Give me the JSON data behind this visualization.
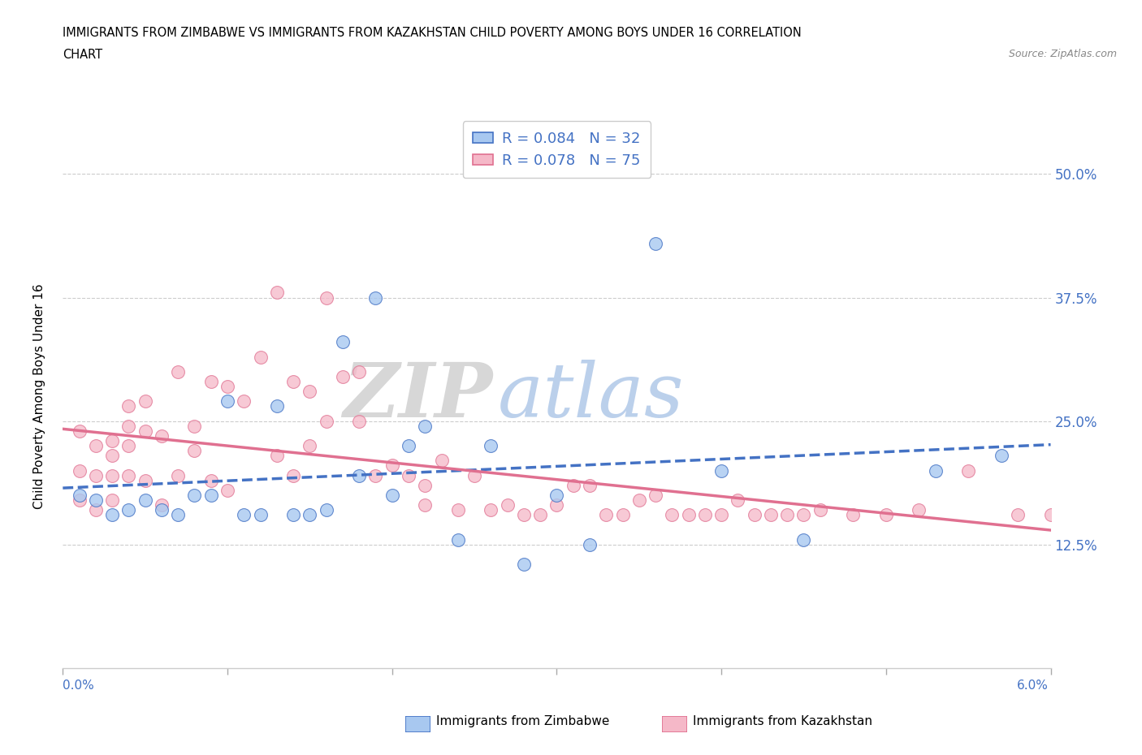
{
  "title_line1": "IMMIGRANTS FROM ZIMBABWE VS IMMIGRANTS FROM KAZAKHSTAN CHILD POVERTY AMONG BOYS UNDER 16 CORRELATION",
  "title_line2": "CHART",
  "source": "Source: ZipAtlas.com",
  "ylabel": "Child Poverty Among Boys Under 16",
  "ylabel_right_ticks": [
    "50.0%",
    "37.5%",
    "25.0%",
    "12.5%"
  ],
  "ylabel_right_vals": [
    0.5,
    0.375,
    0.25,
    0.125
  ],
  "color_zimbabwe": "#a8c8f0",
  "color_kazakhstan": "#f5b8c8",
  "color_text_blue": "#4472c4",
  "color_line_zimbabwe": "#4472c4",
  "color_line_kazakhstan": "#e07090",
  "watermark_top": "ZIP",
  "watermark_bot": "atlas",
  "xlim": [
    0.0,
    0.06
  ],
  "ylim": [
    0.0,
    0.55
  ],
  "zimbabwe_x": [
    0.001,
    0.002,
    0.003,
    0.004,
    0.005,
    0.006,
    0.007,
    0.008,
    0.009,
    0.01,
    0.011,
    0.012,
    0.013,
    0.014,
    0.015,
    0.016,
    0.017,
    0.018,
    0.019,
    0.02,
    0.021,
    0.022,
    0.024,
    0.026,
    0.028,
    0.03,
    0.032,
    0.036,
    0.04,
    0.045,
    0.053,
    0.057
  ],
  "zimbabwe_y": [
    0.175,
    0.17,
    0.155,
    0.16,
    0.17,
    0.16,
    0.155,
    0.175,
    0.175,
    0.27,
    0.155,
    0.155,
    0.265,
    0.155,
    0.155,
    0.16,
    0.33,
    0.195,
    0.375,
    0.175,
    0.225,
    0.245,
    0.13,
    0.225,
    0.105,
    0.175,
    0.125,
    0.43,
    0.2,
    0.13,
    0.2,
    0.215
  ],
  "kazakhstan_x": [
    0.001,
    0.001,
    0.001,
    0.002,
    0.002,
    0.002,
    0.003,
    0.003,
    0.003,
    0.003,
    0.004,
    0.004,
    0.004,
    0.004,
    0.005,
    0.005,
    0.005,
    0.006,
    0.006,
    0.007,
    0.007,
    0.008,
    0.008,
    0.009,
    0.009,
    0.01,
    0.01,
    0.011,
    0.012,
    0.013,
    0.013,
    0.014,
    0.014,
    0.015,
    0.015,
    0.016,
    0.016,
    0.017,
    0.018,
    0.018,
    0.019,
    0.02,
    0.021,
    0.022,
    0.022,
    0.023,
    0.024,
    0.025,
    0.026,
    0.027,
    0.028,
    0.029,
    0.03,
    0.031,
    0.032,
    0.033,
    0.034,
    0.035,
    0.036,
    0.037,
    0.038,
    0.039,
    0.04,
    0.041,
    0.042,
    0.043,
    0.044,
    0.045,
    0.046,
    0.048,
    0.05,
    0.052,
    0.055,
    0.058,
    0.06
  ],
  "kazakhstan_y": [
    0.24,
    0.2,
    0.17,
    0.225,
    0.195,
    0.16,
    0.23,
    0.215,
    0.195,
    0.17,
    0.265,
    0.245,
    0.225,
    0.195,
    0.27,
    0.24,
    0.19,
    0.235,
    0.165,
    0.3,
    0.195,
    0.245,
    0.22,
    0.29,
    0.19,
    0.285,
    0.18,
    0.27,
    0.315,
    0.38,
    0.215,
    0.29,
    0.195,
    0.28,
    0.225,
    0.375,
    0.25,
    0.295,
    0.3,
    0.25,
    0.195,
    0.205,
    0.195,
    0.185,
    0.165,
    0.21,
    0.16,
    0.195,
    0.16,
    0.165,
    0.155,
    0.155,
    0.165,
    0.185,
    0.185,
    0.155,
    0.155,
    0.17,
    0.175,
    0.155,
    0.155,
    0.155,
    0.155,
    0.17,
    0.155,
    0.155,
    0.155,
    0.155,
    0.16,
    0.155,
    0.155,
    0.16,
    0.2,
    0.155,
    0.155
  ]
}
